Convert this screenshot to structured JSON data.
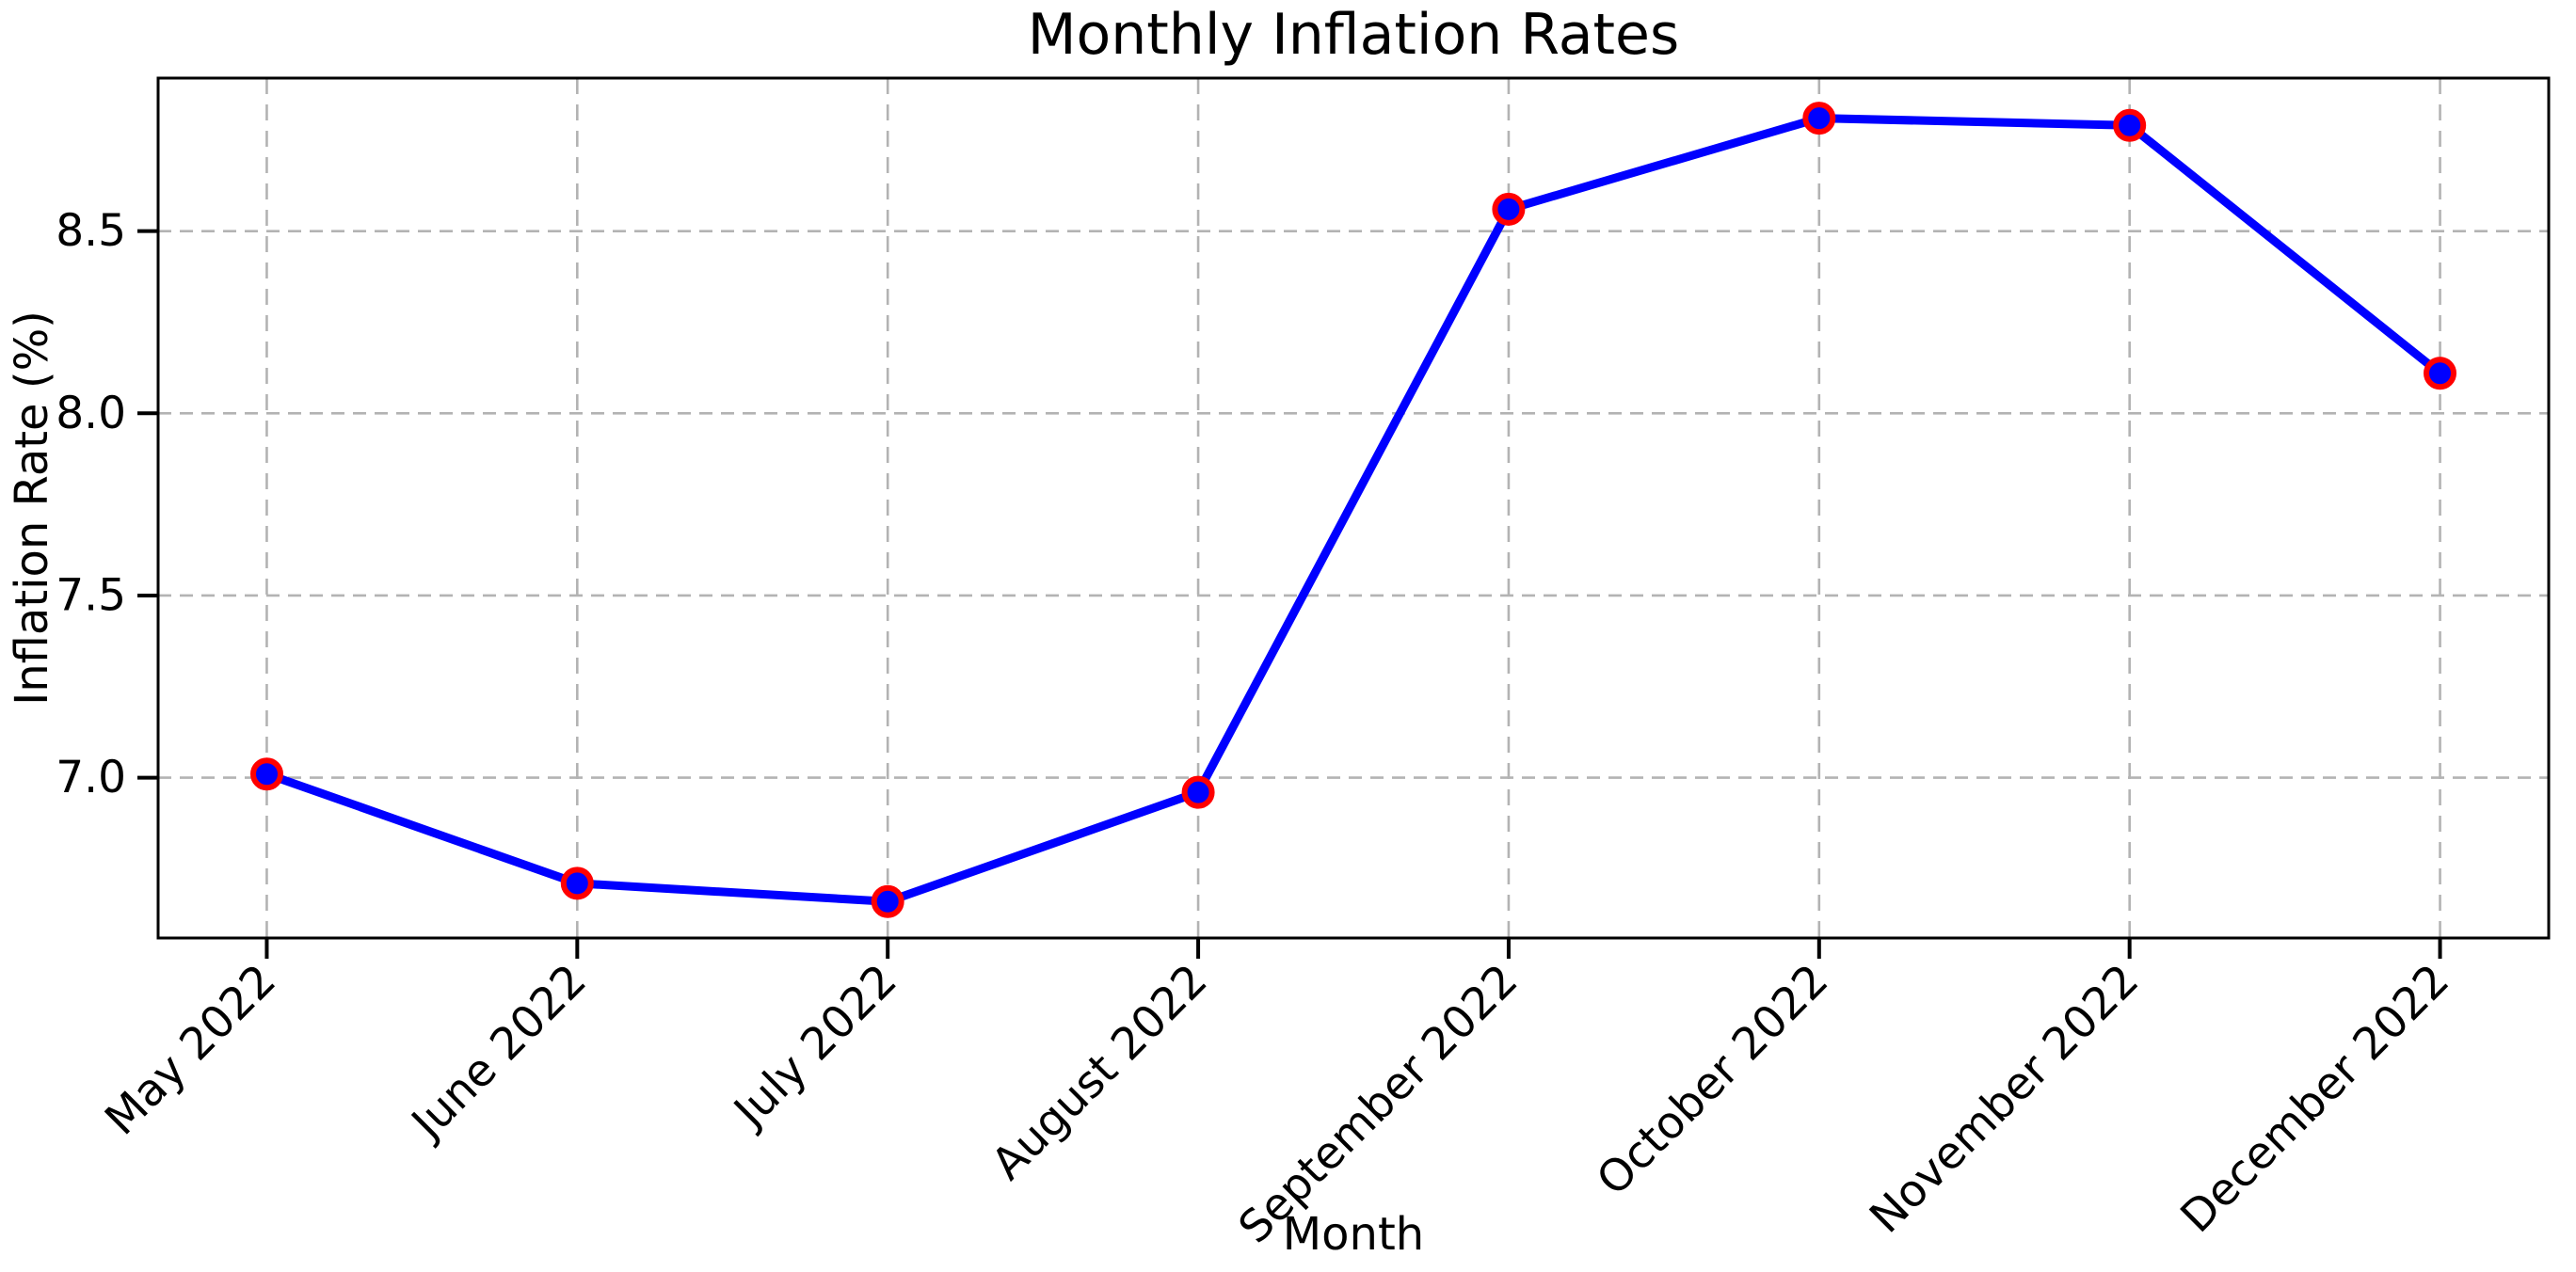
{
  "chart_data": {
    "type": "line",
    "title": "Monthly Inflation Rates",
    "xlabel": "Month",
    "ylabel": "Inflation Rate (%)",
    "categories": [
      "May 2022",
      "June 2022",
      "July 2022",
      "August 2022",
      "September 2022",
      "October 2022",
      "November 2022",
      "December 2022"
    ],
    "series": [
      {
        "name": "Inflation Rate",
        "values": [
          7.01,
          6.71,
          6.66,
          6.96,
          8.56,
          8.81,
          8.79,
          8.11
        ]
      }
    ],
    "yticks": [
      7.0,
      7.5,
      8.0,
      8.5
    ],
    "ytick_labels": [
      "7.0",
      "7.5",
      "8.0",
      "8.5"
    ],
    "ylim": [
      6.56,
      8.92
    ],
    "xlim": [
      -0.35,
      7.35
    ],
    "grid": true,
    "grid_style": "dashed",
    "legend": "none",
    "x_tick_rotation_deg": 45,
    "colors": {
      "line": "#0000ff",
      "marker_face": "#0000ff",
      "marker_edge": "#ff0000",
      "grid": "#b3b3b3",
      "axis": "#000000",
      "text": "#000000",
      "background": "#ffffff"
    }
  }
}
